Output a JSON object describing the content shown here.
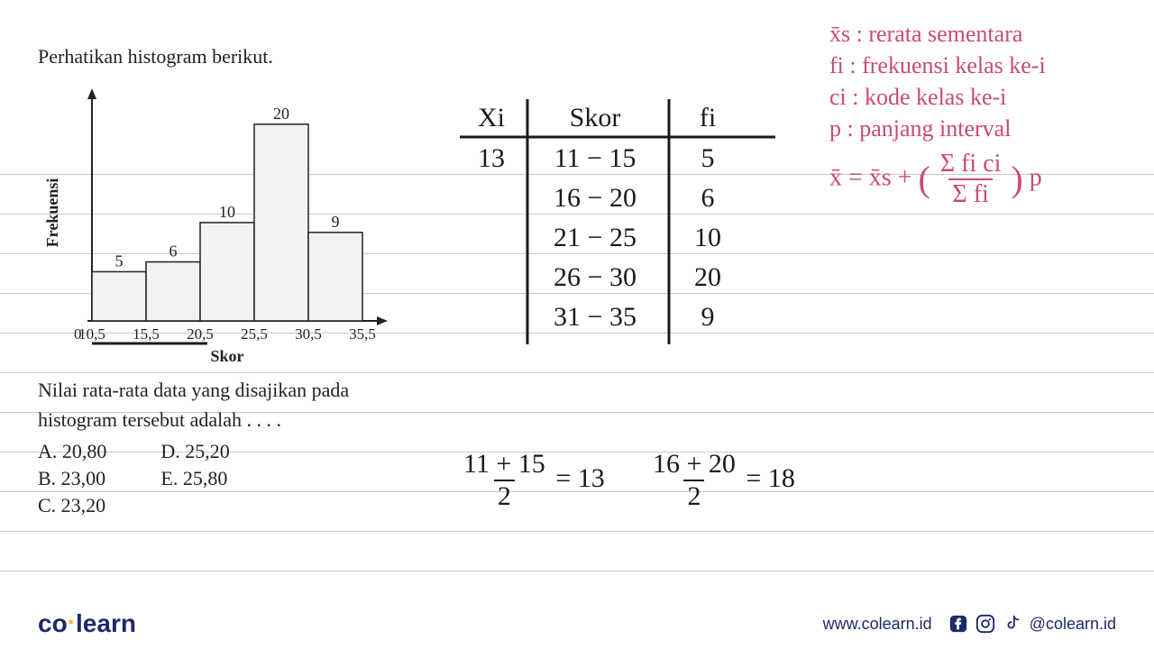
{
  "question": {
    "title": "Perhatikan histogram berikut.",
    "text": "Nilai rata-rata data yang disajikan pada histogram tersebut adalah . . . .",
    "options_left": [
      "A.   20,80",
      "B.   23,00",
      "C.   23,20"
    ],
    "options_right": [
      "D.   25,20",
      "E.   25,80"
    ]
  },
  "histogram": {
    "type": "histogram",
    "xlabel": "Skor",
    "ylabel": "Frekuensi",
    "x_ticks": [
      "10,5",
      "15,5",
      "20,5",
      "25,5",
      "30,5",
      "35,5"
    ],
    "bar_values": [
      5,
      6,
      10,
      20,
      9
    ],
    "bar_labels": [
      "5",
      "6",
      "10",
      "20",
      "9"
    ],
    "ymax": 22,
    "bar_fill": "#f2f2f2",
    "bar_stroke": "#222222",
    "axis_color": "#222222",
    "label_fontsize": 18,
    "axis_fontsize": 18,
    "tick_fontsize": 17,
    "value_fontsize": 18,
    "origin_label": "0"
  },
  "handwritten": {
    "table": {
      "headers": [
        "Xi",
        "Skor",
        "fi"
      ],
      "rows": [
        [
          "13",
          "11 − 15",
          "5"
        ],
        [
          "",
          "16 − 20",
          "6"
        ],
        [
          "",
          "21 − 25",
          "10"
        ],
        [
          "",
          "26 − 30",
          "20"
        ],
        [
          "",
          "31 − 35",
          "9"
        ]
      ],
      "line_color": "#1a1a1a",
      "fontsize": 30
    },
    "calc1_top": "11 + 15",
    "calc1_bot": "2",
    "calc1_res": "= 13",
    "calc2_top": "16 + 20",
    "calc2_bot": "2",
    "calc2_res": "= 18",
    "legend": {
      "xs": "x̄s : rerata sementara",
      "fi": "fi : frekuensi kelas ke-i",
      "ci": "ci : kode kelas ke-i",
      "p": "p : panjang interval",
      "formula_lhs": "x̄ = x̄s + ",
      "formula_frac_top": "Σ fi ci",
      "formula_frac_bot": "Σ fi",
      "formula_rhs": " p",
      "color": "#c94a7a",
      "fontsize": 26
    },
    "underline_color": "#1a1a1a"
  },
  "footer": {
    "logo_co": "co",
    "logo_learn": "learn",
    "url": "www.colearn.id",
    "handle": "@colearn.id",
    "brand_color": "#1d2a6b",
    "accent_color": "#f5b82e"
  }
}
